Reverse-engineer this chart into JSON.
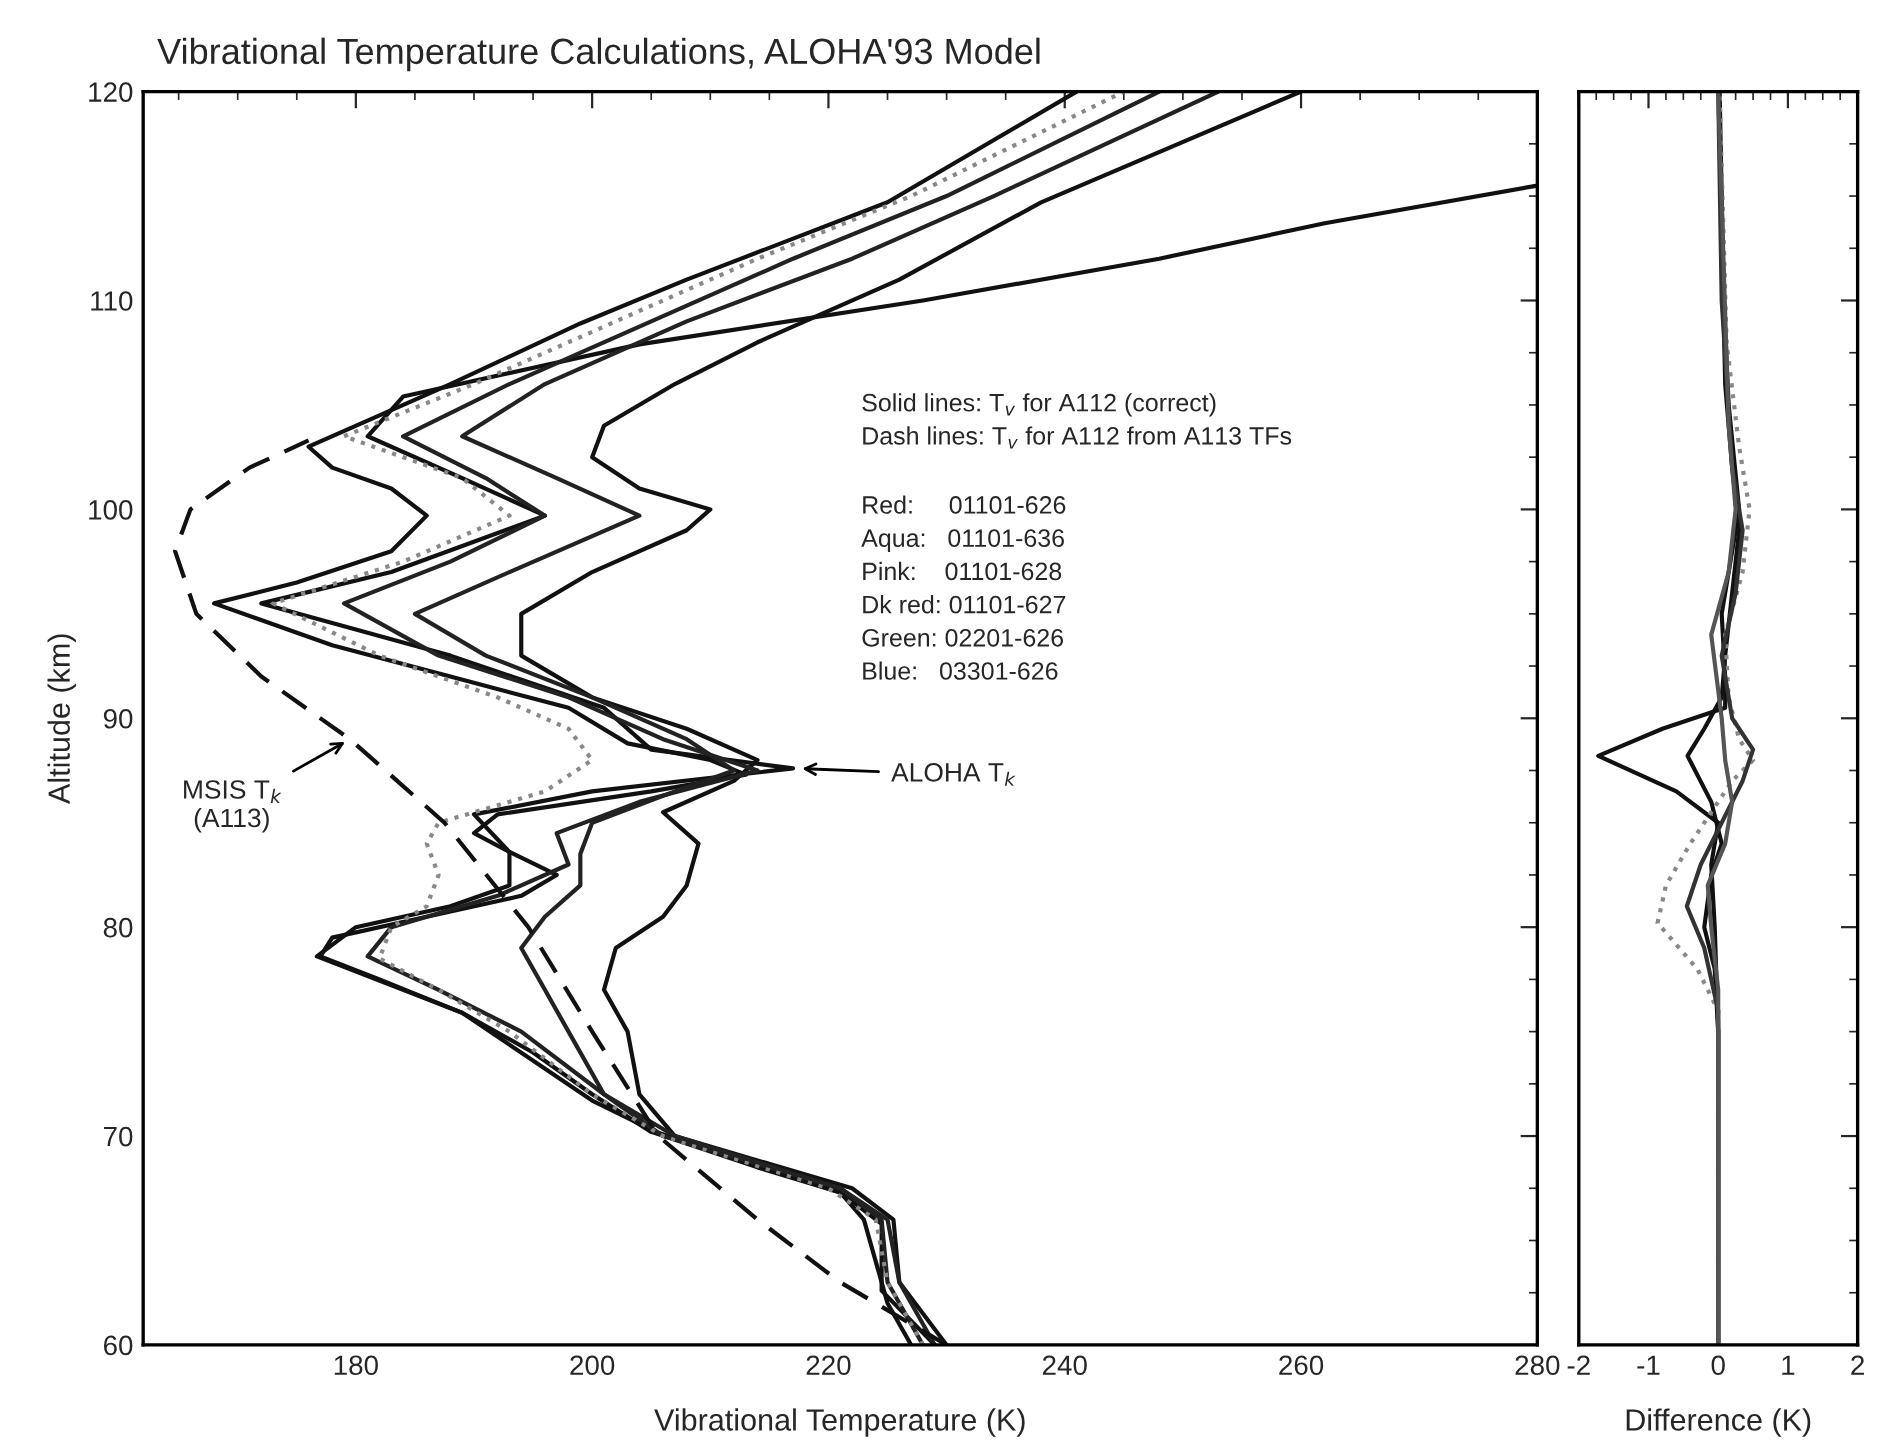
{
  "chart_data": [
    {
      "type": "line",
      "title": "Vibrational Temperature Calculations, ALOHA'93 Model",
      "xlabel": "Vibrational Temperature (K)",
      "ylabel": "Altitude (km)",
      "xlim": [
        162,
        280
      ],
      "xticks": [
        180,
        200,
        220,
        240,
        260,
        280
      ],
      "ylim": [
        60,
        120
      ],
      "yticks": [
        60,
        70,
        80,
        90,
        100,
        110,
        120
      ],
      "series": [
        {
          "color": "#111111",
          "line_style": "solid",
          "x": [
            227,
            225,
            224,
            223,
            221,
            214,
            205,
            200,
            195,
            189,
            182,
            177,
            178,
            186,
            194,
            197,
            193,
            190,
            192,
            205,
            213,
            210,
            203,
            198,
            188,
            178,
            168,
            175,
            183,
            186,
            183,
            178,
            176,
            182,
            188,
            199,
            208,
            225,
            241
          ],
          "values": [
            60,
            62,
            64,
            66,
            67.3,
            68.5,
            70.2,
            72,
            74,
            75.9,
            77.5,
            78.6,
            79.5,
            80.5,
            81.5,
            82.5,
            83.6,
            84.5,
            85.4,
            86.5,
            87.3,
            88,
            88.8,
            90.5,
            92,
            93.5,
            95.5,
            96.5,
            98,
            99.7,
            101,
            102,
            103,
            104.5,
            106,
            108.9,
            111,
            114.7,
            120
          ]
        },
        {
          "color": "#111111",
          "line_style": "solid",
          "x": [
            229,
            224.5,
            224.5,
            221,
            205.4,
            200,
            189,
            176.7,
            180,
            188,
            193,
            193,
            190,
            200,
            217,
            205,
            201,
            188,
            172,
            183,
            196,
            189,
            181,
            184,
            204,
            228,
            248,
            262,
            280
          ],
          "values": [
            60,
            62.6,
            65.8,
            67.3,
            70.2,
            71.7,
            75.9,
            78.6,
            80,
            81,
            82,
            83.6,
            85.4,
            86.5,
            87.6,
            88.5,
            90.5,
            93,
            95.5,
            97,
            99.7,
            101.5,
            103.5,
            105.4,
            107.9,
            110,
            112,
            113.7,
            115.5
          ]
        },
        {
          "color": "#111111",
          "line_style": "solid",
          "x": [
            230,
            226,
            225.5,
            222,
            207,
            204,
            203,
            201,
            202,
            206,
            208,
            209,
            206,
            212,
            214,
            208,
            200,
            194,
            194,
            200,
            208,
            210,
            204,
            200,
            201,
            207,
            214,
            226,
            238,
            260
          ],
          "values": [
            60,
            63,
            66,
            67.5,
            70,
            72,
            75,
            77,
            79,
            80.5,
            82,
            84,
            85.5,
            87,
            88,
            89.5,
            91,
            93,
            95,
            97,
            99,
            100,
            101,
            102.5,
            104,
            106,
            108,
            111,
            114.7,
            120
          ]
        },
        {
          "color": "#222222",
          "line_style": "solid",
          "x": [
            228,
            225,
            224.5,
            221,
            206,
            201,
            194,
            187,
            181,
            183,
            192,
            198,
            197,
            204,
            214,
            206,
            198,
            187,
            179,
            188,
            196,
            191,
            184,
            193,
            205,
            217,
            230,
            248
          ],
          "values": [
            60,
            63,
            66,
            67.5,
            70,
            72,
            75,
            77,
            78.6,
            80,
            81.5,
            83,
            84.5,
            86,
            87.5,
            89,
            91,
            93,
            95.5,
            97.5,
            99.7,
            101.5,
            103.5,
            106,
            109,
            112,
            115,
            120
          ]
        },
        {
          "color": "#888888",
          "line_style": "dotted",
          "x": [
            228,
            225,
            224,
            220,
            206,
            200,
            193,
            187,
            182,
            183,
            186,
            187,
            186,
            187,
            196,
            200,
            198,
            192,
            182,
            173,
            184,
            193,
            189,
            179,
            190,
            202,
            214,
            227,
            245
          ],
          "values": [
            60,
            63,
            66,
            67.5,
            70,
            72,
            75,
            77,
            78.5,
            80,
            81,
            82.5,
            84,
            85,
            86.5,
            88,
            89.5,
            91,
            93,
            95.5,
            97.5,
            99.7,
            101.5,
            103.5,
            106,
            109,
            112,
            115,
            120
          ]
        },
        {
          "color": "#222222",
          "line_style": "solid",
          "x": [
            229,
            226,
            225,
            221,
            207,
            201,
            198,
            196,
            194,
            196,
            199,
            199,
            200,
            207,
            212,
            208,
            200,
            191,
            185,
            193,
            204,
            197,
            189,
            196,
            208,
            222,
            234,
            253
          ],
          "values": [
            60,
            63,
            66,
            67.5,
            70,
            72,
            75,
            77,
            79,
            80.5,
            82,
            83.5,
            85,
            86.5,
            87.5,
            89,
            91,
            93,
            95,
            97,
            99.7,
            101.5,
            103.5,
            106,
            109,
            112,
            115,
            120
          ]
        },
        {
          "color": "#111111",
          "line_style": "dashed",
          "x": [
            230,
            221,
            214,
            205.6,
            200,
            194.6,
            187.5,
            179.5,
            172,
            166.5,
            164.7,
            166,
            171,
            176
          ],
          "values": [
            60,
            63,
            66,
            70,
            75,
            80,
            85,
            89,
            92,
            95,
            98,
            100,
            102,
            103.3
          ]
        }
      ],
      "annotations": [
        "Solid lines: T$_{v}$ for A112 (correct)",
        "Dash lines: T$_{v}$ for A112 from A113 TFs",
        "Red:     01101-626",
        "Aqua:   01101-636",
        "Pink:    01101-628",
        "Dk red: 01101-627",
        "Green: 02201-626",
        "Blue:   03301-626",
        {
          "text": "MSIS T$_{k}$\n(A113)",
          "x": 179.5,
          "y": 89
        },
        {
          "text": "ALOHA T$_{k}$",
          "x": 217.3,
          "y": 87.6
        }
      ]
    },
    {
      "type": "line",
      "xlabel": "Difference (K)",
      "xlim": [
        -2,
        2
      ],
      "xticks": [
        -2,
        -1,
        0,
        1,
        2
      ],
      "ylim": [
        60,
        120
      ],
      "yticks": [
        60,
        70,
        80,
        90,
        100,
        110,
        120
      ],
      "tick_labels": "x",
      "series": [
        {
          "color": "#111111",
          "line_style": "solid",
          "x": [
            0,
            0,
            0,
            -0.05,
            -0.1,
            0,
            -0.6,
            -1.72,
            -0.8,
            0.1,
            0.1,
            0.05,
            0.2,
            0.3,
            0.15,
            0.08,
            0.02
          ],
          "values": [
            60,
            70,
            75,
            80,
            83,
            85,
            86.5,
            88.2,
            89.5,
            90.5,
            92,
            95,
            98,
            100,
            105,
            110,
            120
          ]
        },
        {
          "color": "#111111",
          "line_style": "solid",
          "x": [
            0,
            0,
            -0.05,
            -0.2,
            -0.1,
            0.05,
            -0.1,
            -0.44,
            -0.2,
            0.05,
            0.1,
            0.2,
            0.3,
            0.2,
            0.1,
            0.01
          ],
          "values": [
            60,
            75,
            78,
            80,
            82.5,
            84,
            86,
            88.2,
            89.5,
            91,
            93,
            96,
            99,
            102,
            106,
            120
          ]
        },
        {
          "color": "#888888",
          "line_style": "dotted",
          "x": [
            0,
            0,
            -0.3,
            -0.87,
            -0.75,
            -0.4,
            -0.1,
            0.2,
            0.5,
            0.3,
            0.15,
            0.1,
            0.35,
            0.45,
            0.3,
            0.12,
            0.02
          ],
          "values": [
            60,
            76,
            78,
            80.2,
            82,
            84,
            85.5,
            87,
            88,
            89,
            91,
            94,
            97,
            100,
            103,
            108,
            120
          ]
        },
        {
          "color": "#333333",
          "line_style": "solid",
          "x": [
            0,
            0,
            -0.2,
            -0.45,
            -0.25,
            0.05,
            0.35,
            0.5,
            0.2,
            0.05,
            0.25,
            0.35,
            0.2,
            0.05,
            0
          ],
          "values": [
            60,
            76,
            79,
            81,
            83,
            85,
            87,
            88.5,
            90,
            93,
            96,
            99,
            102,
            110,
            120
          ]
        },
        {
          "color": "#555555",
          "line_style": "solid",
          "x": [
            0,
            0,
            -0.1,
            -0.15,
            0.1,
            0.2,
            0.1,
            0.05,
            -0.1,
            0.15,
            0.25,
            0.15,
            0
          ],
          "values": [
            60,
            77,
            80,
            82,
            84,
            86,
            88,
            90,
            94,
            97,
            100,
            104,
            120
          ]
        }
      ]
    }
  ]
}
